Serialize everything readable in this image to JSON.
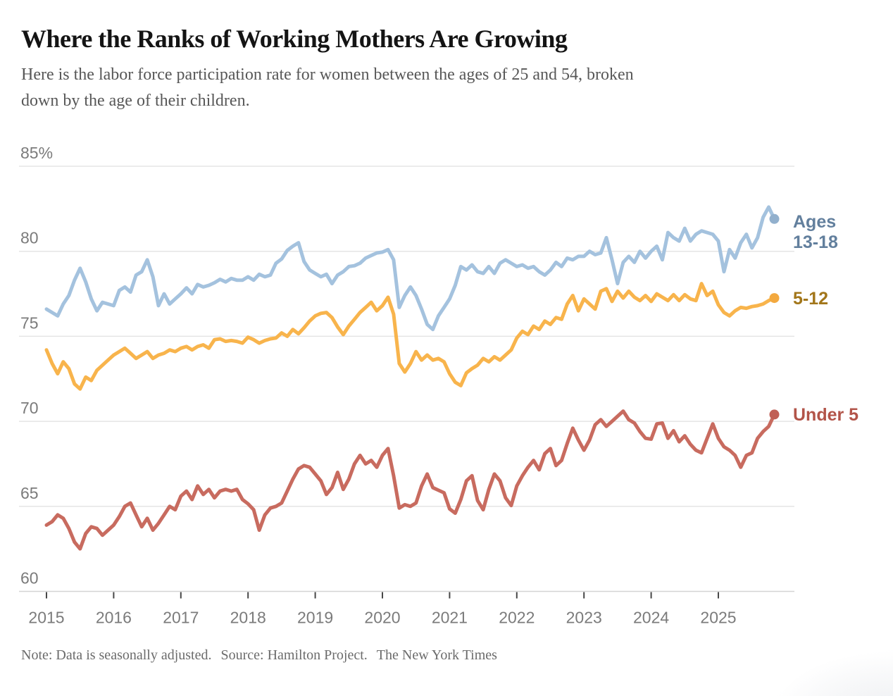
{
  "chart_data": {
    "type": "line",
    "title": "Where the Ranks of Working Mothers Are Growing",
    "subtitle_lines": [
      "Here is the labor force participation rate for women between the ages of 25 and 54, broken",
      "down by the age of their children."
    ],
    "note": "Note: Data is seasonally adjusted.",
    "source": "Source: Hamilton Project.",
    "credit": "The New York Times",
    "x_unit": "month",
    "x_start": "2015-01",
    "x_end": "2025-11",
    "x_tick_years": [
      2015,
      2016,
      2017,
      2018,
      2019,
      2020,
      2021,
      2022,
      2023,
      2024,
      2025
    ],
    "y_tick_values": [
      85,
      80,
      75,
      70,
      65,
      60
    ],
    "y_tick_labels": [
      "85%",
      "80",
      "75",
      "70",
      "65",
      "60"
    ],
    "ylim": [
      60,
      85
    ],
    "grid": true,
    "legend_position": "right-of-line-ends",
    "grid_color": "#e5e5e5",
    "baseline_color": "#d4d4d4",
    "tick_color": "#474747",
    "tick_label_color": "#7b7b7b",
    "series": [
      {
        "name": "Ages 13-18",
        "color": "#a4c2de",
        "dot_color": "#92b0cd",
        "label_color": "#627f9d",
        "values": [
          76.6,
          76.4,
          76.2,
          76.9,
          77.4,
          78.3,
          79.0,
          78.2,
          77.2,
          76.5,
          77.0,
          76.9,
          76.8,
          77.7,
          77.9,
          77.6,
          78.6,
          78.8,
          79.5,
          78.5,
          76.8,
          77.5,
          76.9,
          77.2,
          77.5,
          77.85,
          77.5,
          78.05,
          77.9,
          78.0,
          78.15,
          78.35,
          78.2,
          78.4,
          78.3,
          78.3,
          78.5,
          78.3,
          78.65,
          78.5,
          78.6,
          79.3,
          79.55,
          80.05,
          80.3,
          80.5,
          79.4,
          78.9,
          78.7,
          78.5,
          78.65,
          78.1,
          78.6,
          78.8,
          79.1,
          79.15,
          79.3,
          79.6,
          79.75,
          79.9,
          79.95,
          80.1,
          79.5,
          76.7,
          77.4,
          77.9,
          77.4,
          76.6,
          75.7,
          75.4,
          76.2,
          76.7,
          77.2,
          78.0,
          79.1,
          78.9,
          79.2,
          78.8,
          78.7,
          79.1,
          78.7,
          79.3,
          79.5,
          79.3,
          79.1,
          79.2,
          79.0,
          79.1,
          78.8,
          78.6,
          78.9,
          79.35,
          79.1,
          79.6,
          79.5,
          79.7,
          79.7,
          80.0,
          79.8,
          79.9,
          80.8,
          79.5,
          78.1,
          79.35,
          79.7,
          79.35,
          80.0,
          79.6,
          80.0,
          80.3,
          79.5,
          81.1,
          80.8,
          80.6,
          81.35,
          80.6,
          81.0,
          81.2,
          81.1,
          81.0,
          80.6,
          78.8,
          80.1,
          79.6,
          80.5,
          81.0,
          80.2,
          80.8,
          82.0,
          82.6,
          81.9
        ]
      },
      {
        "name": "5-12",
        "color": "#f8b44c",
        "dot_color": "#f3a93f",
        "label_color": "#a2761a",
        "values": [
          74.2,
          73.4,
          72.8,
          73.5,
          73.1,
          72.2,
          71.9,
          72.6,
          72.4,
          73.0,
          73.3,
          73.6,
          73.9,
          74.1,
          74.3,
          74.0,
          73.7,
          73.9,
          74.1,
          73.7,
          73.9,
          74.0,
          74.2,
          74.1,
          74.3,
          74.4,
          74.2,
          74.4,
          74.5,
          74.3,
          74.8,
          74.85,
          74.7,
          74.75,
          74.7,
          74.6,
          74.95,
          74.8,
          74.6,
          74.75,
          74.85,
          74.9,
          75.2,
          75.0,
          75.4,
          75.15,
          75.5,
          75.9,
          76.2,
          76.35,
          76.4,
          76.1,
          75.55,
          75.1,
          75.6,
          76.0,
          76.4,
          76.7,
          77.0,
          76.5,
          76.8,
          77.3,
          76.3,
          73.4,
          72.9,
          73.4,
          74.1,
          73.6,
          73.9,
          73.6,
          73.7,
          73.5,
          72.8,
          72.3,
          72.1,
          72.85,
          73.1,
          73.3,
          73.7,
          73.5,
          73.8,
          73.6,
          73.9,
          74.2,
          74.9,
          75.3,
          75.1,
          75.6,
          75.4,
          75.9,
          75.7,
          76.1,
          76.0,
          76.9,
          77.4,
          76.5,
          77.2,
          76.9,
          76.6,
          77.65,
          77.8,
          77.05,
          77.65,
          77.25,
          77.65,
          77.3,
          77.1,
          77.4,
          77.05,
          77.5,
          77.3,
          77.1,
          77.45,
          77.1,
          77.45,
          77.2,
          77.1,
          78.1,
          77.4,
          77.65,
          76.85,
          76.4,
          76.2,
          76.5,
          76.7,
          76.65,
          76.75,
          76.8,
          76.9,
          77.1,
          77.25
        ]
      },
      {
        "name": "Under 5",
        "color": "#c86b5f",
        "dot_color": "#c05f55",
        "label_color": "#b25449",
        "values": [
          63.9,
          64.1,
          64.5,
          64.3,
          63.7,
          62.9,
          62.5,
          63.4,
          63.8,
          63.7,
          63.3,
          63.6,
          63.9,
          64.4,
          65.0,
          65.2,
          64.5,
          63.8,
          64.3,
          63.6,
          64.0,
          64.5,
          65.0,
          64.8,
          65.6,
          65.9,
          65.4,
          66.2,
          65.7,
          66.0,
          65.5,
          65.9,
          66.0,
          65.9,
          66.0,
          65.4,
          65.15,
          64.8,
          63.6,
          64.5,
          64.9,
          65.0,
          65.2,
          65.9,
          66.6,
          67.2,
          67.4,
          67.3,
          66.9,
          66.5,
          65.7,
          66.1,
          67.0,
          66.0,
          66.6,
          67.5,
          68.0,
          67.5,
          67.7,
          67.3,
          68.0,
          68.4,
          66.8,
          64.9,
          65.1,
          65.0,
          65.2,
          66.2,
          66.9,
          66.1,
          65.95,
          65.8,
          64.85,
          64.6,
          65.4,
          66.5,
          66.8,
          65.35,
          64.8,
          66.0,
          66.9,
          66.5,
          65.5,
          65.05,
          66.2,
          66.8,
          67.3,
          67.7,
          67.15,
          68.1,
          68.4,
          67.4,
          67.7,
          68.7,
          69.6,
          68.9,
          68.3,
          68.9,
          69.8,
          70.1,
          69.7,
          70.0,
          70.3,
          70.6,
          70.1,
          69.9,
          69.4,
          69.0,
          68.95,
          69.85,
          69.9,
          69.0,
          69.45,
          68.8,
          69.15,
          68.65,
          68.3,
          68.15,
          69.0,
          69.85,
          69.0,
          68.5,
          68.3,
          68.0,
          67.3,
          68.0,
          68.15,
          69.0,
          69.4,
          69.7,
          70.4
        ]
      }
    ]
  }
}
